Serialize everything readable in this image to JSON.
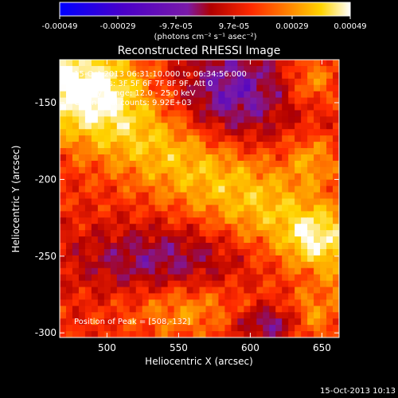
{
  "colorbar": {
    "tick_labels": [
      "-0.00049",
      "-0.00029",
      "-9.7e-05",
      "9.7e-05",
      "0.00029",
      "0.00049"
    ],
    "unit_label": "(photons cm⁻² s⁻¹ asec⁻²)",
    "range": [
      -0.00049,
      0.00049
    ],
    "colors": [
      "#0000ff",
      "#4a00c8",
      "#7a1aa8",
      "#b00000",
      "#ff2a00",
      "#ff8c00",
      "#ffd400",
      "#ffffff"
    ]
  },
  "chart_data": {
    "type": "heatmap",
    "title": "Reconstructed RHESSI Image",
    "xlabel": "Heliocentric X (arcsec)",
    "ylabel": "Heliocentric Y (arcsec)",
    "xlim": [
      467,
      662
    ],
    "ylim": [
      -303,
      -122
    ],
    "xticks": [
      500,
      550,
      600,
      650
    ],
    "yticks": [
      -150,
      -200,
      -250,
      -300
    ],
    "annotations": [
      "15-Oct-2013 06:31:10.000 to 06:34:56.000",
      "Detectors: 3F 5F 6F 7F 8F 9F, Att 0",
      "Energy Range: 12.0 - 25.0 keV",
      "Clean    Total counts: 9.92E+03",
      "Position of Peak = [508,-132]"
    ],
    "peak": [
      508,
      -132
    ],
    "footer_timestamp": "15-Oct-2013 10:13"
  }
}
